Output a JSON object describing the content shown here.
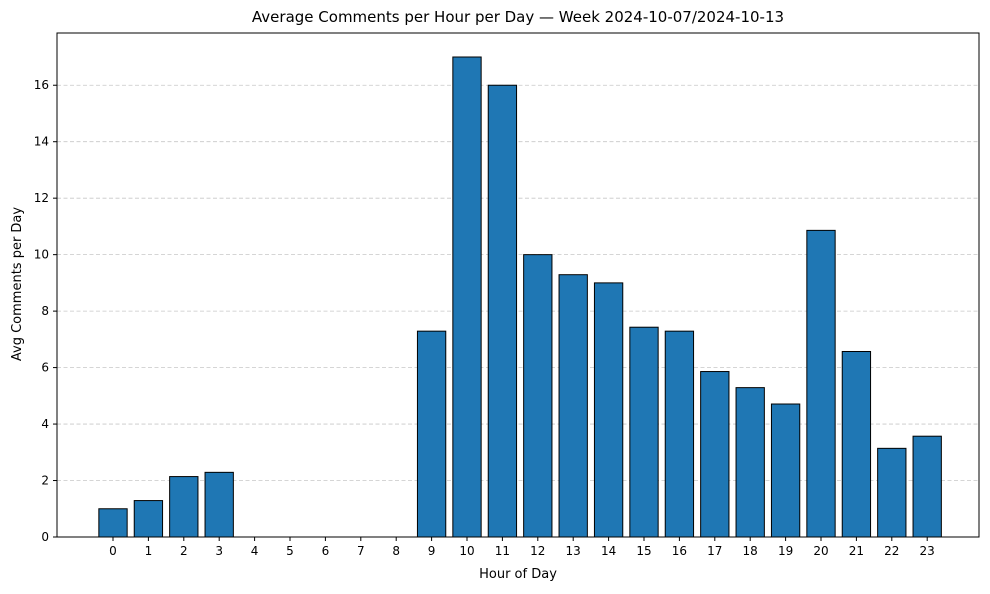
{
  "chart_data": {
    "type": "bar",
    "title": "Average Comments per Hour per Day — Week 2024-10-07/2024-10-13",
    "xlabel": "Hour of Day",
    "ylabel": "Avg Comments per Day",
    "categories": [
      "0",
      "1",
      "2",
      "3",
      "4",
      "5",
      "6",
      "7",
      "8",
      "9",
      "10",
      "11",
      "12",
      "13",
      "14",
      "15",
      "16",
      "17",
      "18",
      "19",
      "20",
      "21",
      "22",
      "23"
    ],
    "values": [
      1.0,
      1.29,
      2.14,
      2.29,
      0,
      0,
      0,
      0,
      0,
      7.29,
      17.0,
      16.0,
      10.0,
      9.29,
      9.0,
      7.43,
      7.29,
      5.86,
      5.29,
      4.71,
      10.86,
      6.57,
      3.14,
      3.57
    ],
    "ylim": [
      0,
      17.85
    ],
    "yticks": [
      0,
      2,
      4,
      6,
      8,
      10,
      12,
      14,
      16
    ],
    "grid": "y-dashed",
    "bar_color": "#1f77b4",
    "edge_color": "#000000",
    "grid_color": "#c7c7c7"
  }
}
